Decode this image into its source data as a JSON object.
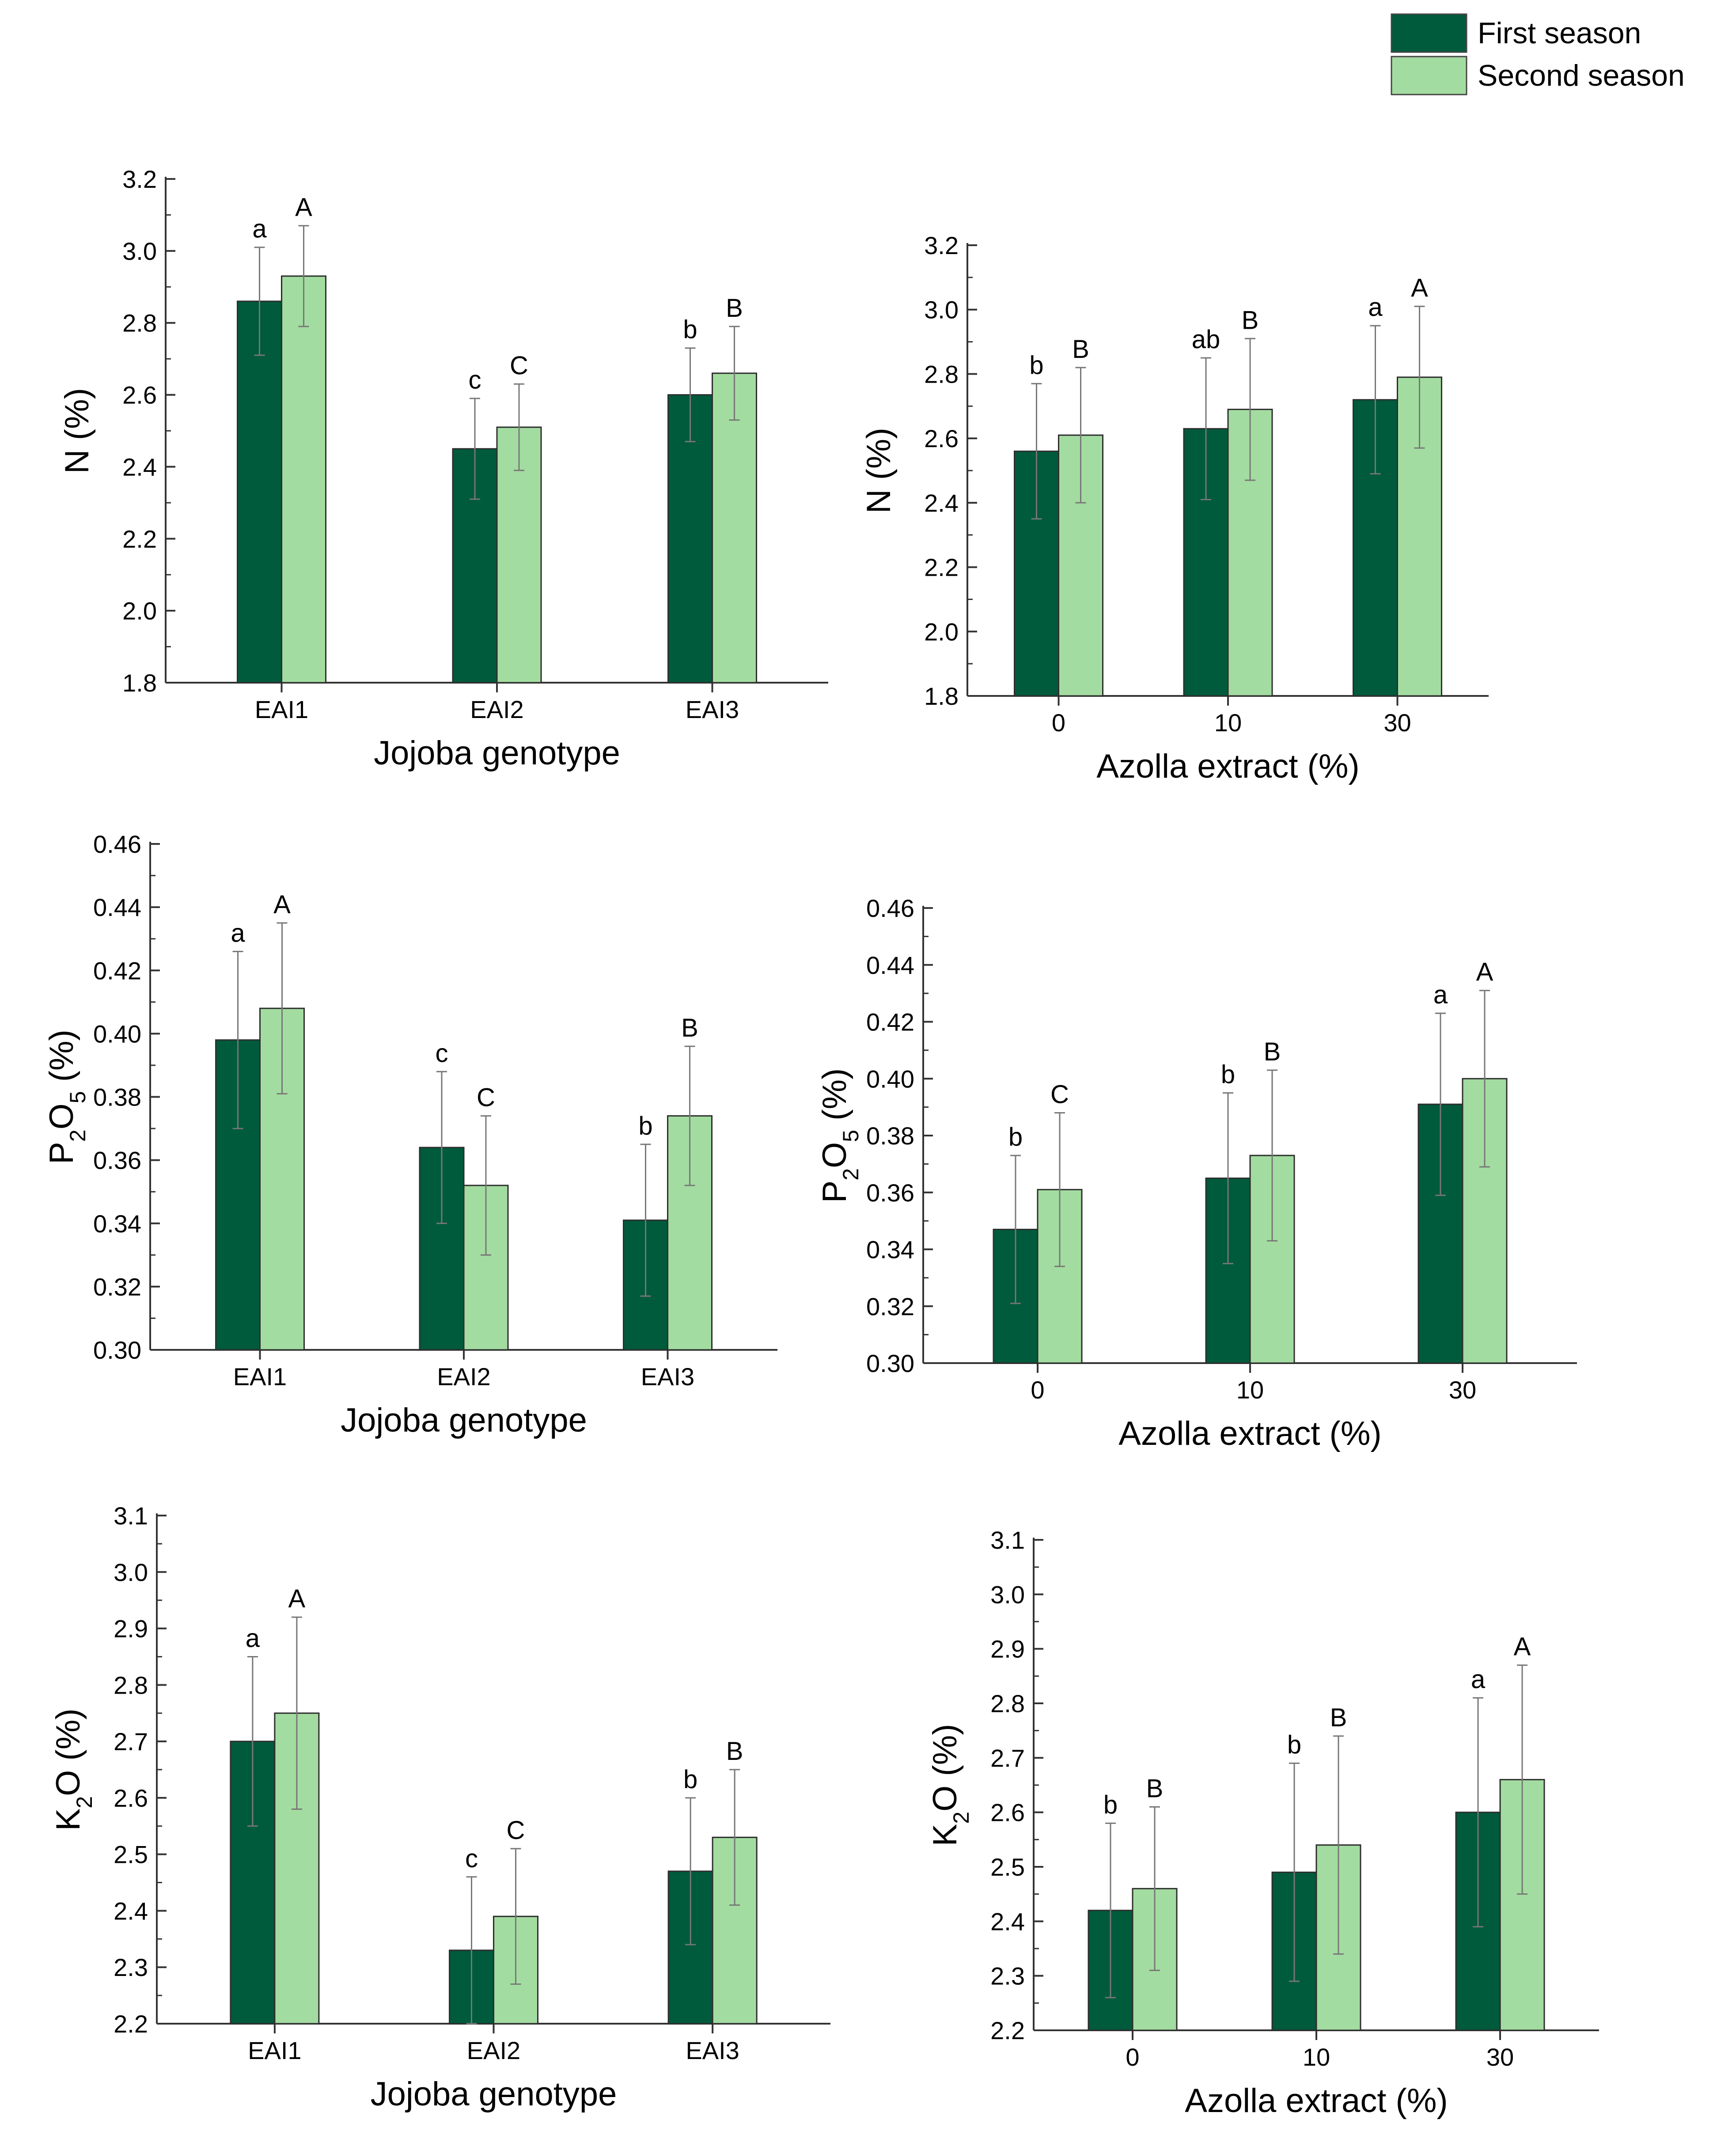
{
  "legend": {
    "items": [
      {
        "label": "First season",
        "color": "#005a3c"
      },
      {
        "label": "Second season",
        "color": "#a3dca0"
      }
    ]
  },
  "chart_data": [
    {
      "type": "bar",
      "panel": "top-left",
      "categories": [
        "EAI1",
        "EAI2",
        "EAI3"
      ],
      "series": [
        {
          "name": "First season",
          "values": [
            2.86,
            2.45,
            2.6
          ],
          "errors": [
            0.15,
            0.14,
            0.13
          ],
          "letters": [
            "a",
            "c",
            "b"
          ]
        },
        {
          "name": "Second season",
          "values": [
            2.93,
            2.51,
            2.66
          ],
          "errors": [
            0.14,
            0.12,
            0.13
          ],
          "letters": [
            "A",
            "C",
            "B"
          ]
        }
      ],
      "xlabel": "Jojoba genotype",
      "ylabel": {
        "main": "N",
        "sub": "",
        "after": "",
        "unit": " (%)"
      },
      "ylim": [
        1.8,
        3.2
      ],
      "yticks": [
        "1.8",
        "2.0",
        "2.2",
        "2.4",
        "2.6",
        "2.8",
        "3.0",
        "3.2"
      ]
    },
    {
      "type": "bar",
      "panel": "top-right",
      "categories": [
        "0",
        "10",
        "30"
      ],
      "series": [
        {
          "name": "First season",
          "values": [
            2.56,
            2.63,
            2.72
          ],
          "errors": [
            0.21,
            0.22,
            0.23
          ],
          "letters": [
            "b",
            "ab",
            "a"
          ]
        },
        {
          "name": "Second season",
          "values": [
            2.61,
            2.69,
            2.79
          ],
          "errors": [
            0.21,
            0.22,
            0.22
          ],
          "letters": [
            "B",
            "B",
            "A"
          ]
        }
      ],
      "xlabel": "Azolla extract (%)",
      "ylabel": {
        "main": "N",
        "sub": "",
        "after": "",
        "unit": " (%)"
      },
      "ylim": [
        1.8,
        3.2
      ],
      "yticks": [
        "1.8",
        "2.0",
        "2.2",
        "2.4",
        "2.6",
        "2.8",
        "3.0",
        "3.2"
      ]
    },
    {
      "type": "bar",
      "panel": "middle-left",
      "categories": [
        "EAI1",
        "EAI2",
        "EAI3"
      ],
      "series": [
        {
          "name": "First season",
          "values": [
            0.398,
            0.364,
            0.341
          ],
          "errors": [
            0.028,
            0.024,
            0.024
          ],
          "letters": [
            "a",
            "c",
            "b"
          ]
        },
        {
          "name": "Second season",
          "values": [
            0.408,
            0.352,
            0.374
          ],
          "errors": [
            0.027,
            0.022,
            0.022
          ],
          "letters": [
            "A",
            "C",
            "B"
          ]
        }
      ],
      "xlabel": "Jojoba genotype",
      "ylabel": {
        "main": "P",
        "sub": "2",
        "after": "O",
        "sub2": "5",
        "unit": " (%)"
      },
      "ylim": [
        0.3,
        0.46
      ],
      "yticks": [
        "0.30",
        "0.32",
        "0.34",
        "0.36",
        "0.38",
        "0.40",
        "0.42",
        "0.44",
        "0.46"
      ]
    },
    {
      "type": "bar",
      "panel": "middle-right",
      "categories": [
        "0",
        "10",
        "30"
      ],
      "series": [
        {
          "name": "First season",
          "values": [
            0.347,
            0.365,
            0.391
          ],
          "errors": [
            0.026,
            0.03,
            0.032
          ],
          "letters": [
            "b",
            "b",
            "a"
          ]
        },
        {
          "name": "Second season",
          "values": [
            0.361,
            0.373,
            0.4
          ],
          "errors": [
            0.027,
            0.03,
            0.031
          ],
          "letters": [
            "C",
            "B",
            "A"
          ]
        }
      ],
      "xlabel": "Azolla extract (%)",
      "ylabel": {
        "main": "P",
        "sub": "2",
        "after": "O",
        "sub2": "5",
        "unit": " (%)"
      },
      "ylim": [
        0.3,
        0.46
      ],
      "yticks": [
        "0.30",
        "0.32",
        "0.34",
        "0.36",
        "0.38",
        "0.40",
        "0.42",
        "0.44",
        "0.46"
      ]
    },
    {
      "type": "bar",
      "panel": "bottom-left",
      "categories": [
        "EAI1",
        "EAI2",
        "EAI3"
      ],
      "series": [
        {
          "name": "First season",
          "values": [
            2.7,
            2.33,
            2.47
          ],
          "errors": [
            0.15,
            0.13,
            0.13
          ],
          "letters": [
            "a",
            "c",
            "b"
          ]
        },
        {
          "name": "Second season",
          "values": [
            2.75,
            2.39,
            2.53
          ],
          "errors": [
            0.17,
            0.12,
            0.12
          ],
          "letters": [
            "A",
            "C",
            "B"
          ]
        }
      ],
      "xlabel": "Jojoba genotype",
      "ylabel": {
        "main": "K",
        "sub": "2",
        "after": "O",
        "sub2": "",
        "unit": " (%)"
      },
      "ylim": [
        2.2,
        3.1
      ],
      "yticks": [
        "2.2",
        "2.3",
        "2.4",
        "2.5",
        "2.6",
        "2.7",
        "2.8",
        "2.9",
        "3.0",
        "3.1"
      ]
    },
    {
      "type": "bar",
      "panel": "bottom-right",
      "categories": [
        "0",
        "10",
        "30"
      ],
      "series": [
        {
          "name": "First season",
          "values": [
            2.42,
            2.49,
            2.6
          ],
          "errors": [
            0.16,
            0.2,
            0.21
          ],
          "letters": [
            "b",
            "b",
            "a"
          ]
        },
        {
          "name": "Second season",
          "values": [
            2.46,
            2.54,
            2.66
          ],
          "errors": [
            0.15,
            0.2,
            0.21
          ],
          "letters": [
            "B",
            "B",
            "A"
          ]
        }
      ],
      "xlabel": "Azolla extract (%)",
      "ylabel": {
        "main": "K",
        "sub": "2",
        "after": "O",
        "sub2": "",
        "unit": " (%)"
      },
      "ylim": [
        2.2,
        3.1
      ],
      "yticks": [
        "2.2",
        "2.3",
        "2.4",
        "2.5",
        "2.6",
        "2.7",
        "2.8",
        "2.9",
        "3.0",
        "3.1"
      ]
    }
  ]
}
